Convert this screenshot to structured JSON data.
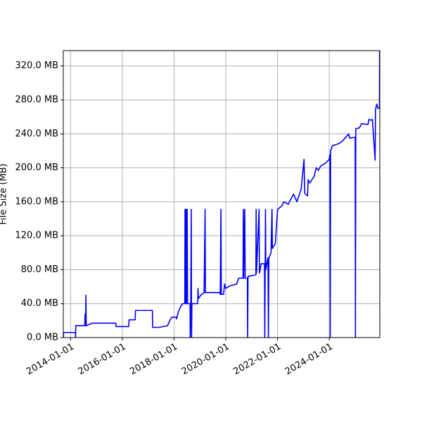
{
  "chart_data": {
    "type": "line",
    "ylabel": "File Size (MB)",
    "xlim": [
      "2013-09-20",
      "2025-12-15"
    ],
    "xticks": [
      "2014-01-01",
      "2016-01-01",
      "2018-01-01",
      "2020-01-01",
      "2022-01-01",
      "2024-01-01"
    ],
    "ylim": [
      0,
      338
    ],
    "yticks": [
      {
        "value": 0,
        "label": "0.0 MB"
      },
      {
        "value": 40,
        "label": "40.0 MB"
      },
      {
        "value": 80,
        "label": "80.0 MB"
      },
      {
        "value": 120,
        "label": "120.0 MB"
      },
      {
        "value": 160,
        "label": "160.0 MB"
      },
      {
        "value": 200,
        "label": "200.0 MB"
      },
      {
        "value": 240,
        "label": "240.0 MB"
      },
      {
        "value": 280,
        "label": "280.0 MB"
      },
      {
        "value": 320,
        "label": "320.0 MB"
      }
    ],
    "grid": true,
    "series": [
      {
        "color": "#0000ff",
        "x": [
          "2013-09-20",
          "2013-09-25",
          "2014-03-10",
          "2014-03-12",
          "2014-03-15",
          "2014-07-20",
          "2014-07-25",
          "2014-08-01",
          "2014-08-05",
          "2014-08-10",
          "2014-11-01",
          "2015-10-01",
          "2015-10-05",
          "2016-04-01",
          "2016-04-05",
          "2016-07-01",
          "2016-07-05",
          "2017-03-01",
          "2017-03-05",
          "2017-06-01",
          "2017-10-01",
          "2017-11-01",
          "2017-12-01",
          "2018-02-01",
          "2018-02-05",
          "2018-03-01",
          "2018-04-01",
          "2018-05-01",
          "2018-06-01",
          "2018-06-05",
          "2018-06-10",
          "2018-06-20",
          "2018-06-25",
          "2018-07-05",
          "2018-07-10",
          "2018-08-15",
          "2018-08-17",
          "2018-08-25",
          "2018-09-01",
          "2018-09-05",
          "2018-09-10",
          "2018-12-01",
          "2018-12-05",
          "2018-12-10",
          "2019-01-15",
          "2019-03-01",
          "2019-03-15",
          "2019-03-20",
          "2019-10-01",
          "2019-10-15",
          "2019-10-25",
          "2019-10-30",
          "2019-12-01",
          "2019-12-15",
          "2020-01-01",
          "2020-03-01",
          "2020-06-01",
          "2020-07-01",
          "2020-09-01",
          "2020-09-05",
          "2020-09-10",
          "2020-09-25",
          "2020-10-01",
          "2020-11-01",
          "2020-11-05",
          "2020-11-10",
          "2021-03-01",
          "2021-03-05",
          "2021-03-10",
          "2021-04-15",
          "2021-04-20",
          "2021-05-15",
          "2021-07-01",
          "2021-07-05",
          "2021-07-15",
          "2021-07-20",
          "2021-08-20",
          "2021-08-25",
          "2021-09-01",
          "2021-10-01",
          "2021-10-15",
          "2021-10-20",
          "2021-12-01",
          "2022-01-01",
          "2022-03-01",
          "2022-04-01",
          "2022-06-01",
          "2022-07-01",
          "2022-08-15",
          "2022-10-01",
          "2022-12-01",
          "2023-01-10",
          "2023-01-20",
          "2023-03-01",
          "2023-03-10",
          "2023-04-01",
          "2023-06-01",
          "2023-07-01",
          "2023-08-01",
          "2023-09-01",
          "2023-11-01",
          "2024-01-01",
          "2024-01-10",
          "2024-01-15",
          "2024-01-20",
          "2024-02-15",
          "2024-05-01",
          "2024-07-01",
          "2024-10-01",
          "2024-10-15",
          "2025-01-01",
          "2025-01-05",
          "2025-01-10",
          "2025-03-01",
          "2025-04-01",
          "2025-07-01",
          "2025-07-15",
          "2025-08-15",
          "2025-09-01",
          "2025-10-10",
          "2025-10-15",
          "2025-11-01",
          "2025-11-20",
          "2025-12-10",
          "2025-12-12"
        ],
        "values": [
          0,
          6,
          6,
          0,
          14,
          14,
          28,
          14,
          50,
          14,
          17,
          17,
          13,
          13,
          21,
          21,
          32,
          32,
          12,
          12,
          14,
          20,
          24,
          24,
          22,
          30,
          36,
          40,
          40,
          151,
          40,
          151,
          40,
          151,
          40,
          40,
          0,
          40,
          151,
          0,
          40,
          40,
          58,
          46,
          50,
          53,
          151,
          53,
          53,
          51,
          151,
          51,
          51,
          63,
          58,
          61,
          63,
          70,
          70,
          151,
          70,
          151,
          70,
          70,
          0,
          72,
          74,
          151,
          76,
          151,
          76,
          87,
          87,
          0,
          151,
          80,
          94,
          0,
          94,
          100,
          151,
          105,
          111,
          151,
          155,
          160,
          157,
          162,
          169,
          160,
          175,
          210,
          170,
          167,
          186,
          182,
          190,
          200,
          197,
          202,
          205,
          210,
          215,
          0,
          220,
          226,
          228,
          231,
          240,
          235,
          236,
          0,
          246,
          247,
          252,
          251,
          257,
          256,
          257,
          209,
          268,
          275,
          270,
          270,
          340
        ]
      }
    ]
  }
}
